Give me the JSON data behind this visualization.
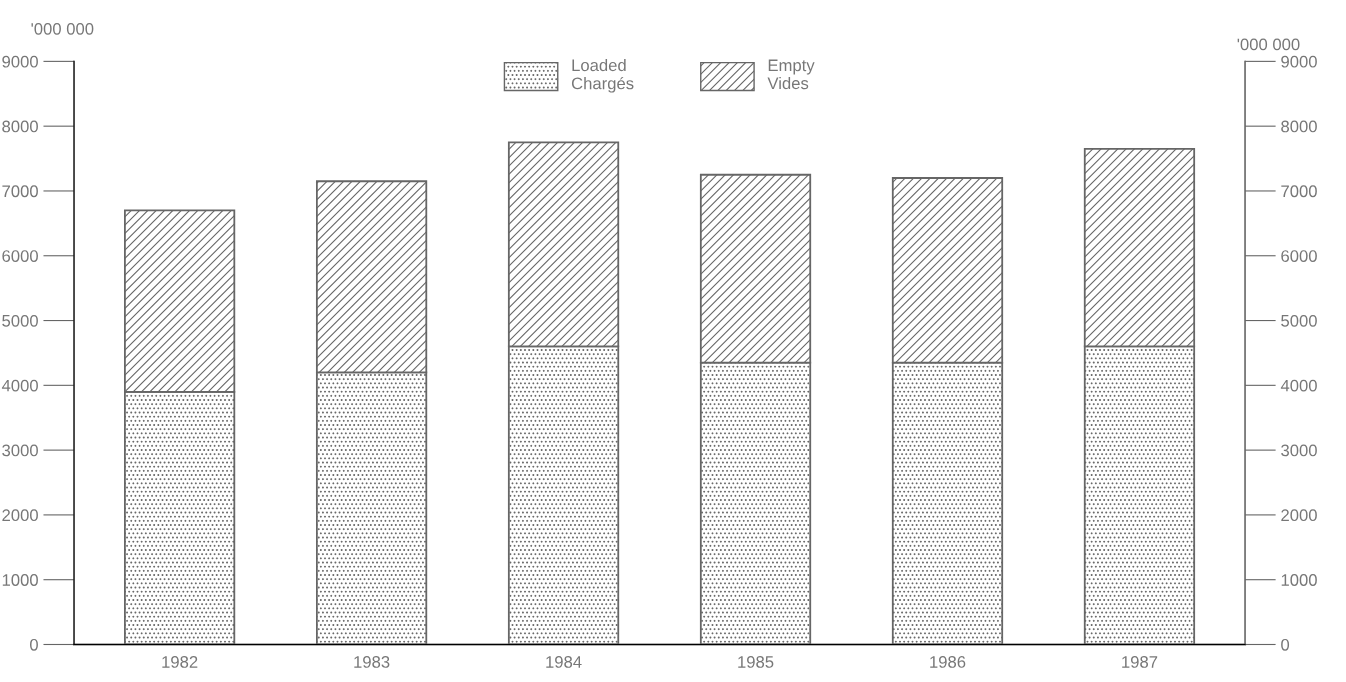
{
  "chart_data": {
    "type": "bar",
    "stacked": true,
    "ylabel": "'000 000",
    "y2label": "'000 000",
    "categories": [
      "1982",
      "1983",
      "1984",
      "1985",
      "1986",
      "1987"
    ],
    "series": [
      {
        "name": "Loaded\nChargés",
        "color": "#666666",
        "values": [
          3900,
          4200,
          4600,
          4350,
          4350,
          4600
        ]
      },
      {
        "name": "Empty\nVides",
        "color": "#666666",
        "values": [
          2800,
          2950,
          3150,
          2900,
          2850,
          3050
        ]
      }
    ],
    "ylim": [
      0,
      9000
    ],
    "yticks": [
      0,
      1000,
      2000,
      3000,
      4000,
      5000,
      6000,
      7000,
      8000,
      9000
    ],
    "y2lim": [
      0,
      9000
    ],
    "y2ticks": [
      0,
      1000,
      2000,
      3000,
      4000,
      5000,
      6000,
      7000,
      8000,
      9000
    ],
    "grid": false,
    "legend": "top"
  }
}
